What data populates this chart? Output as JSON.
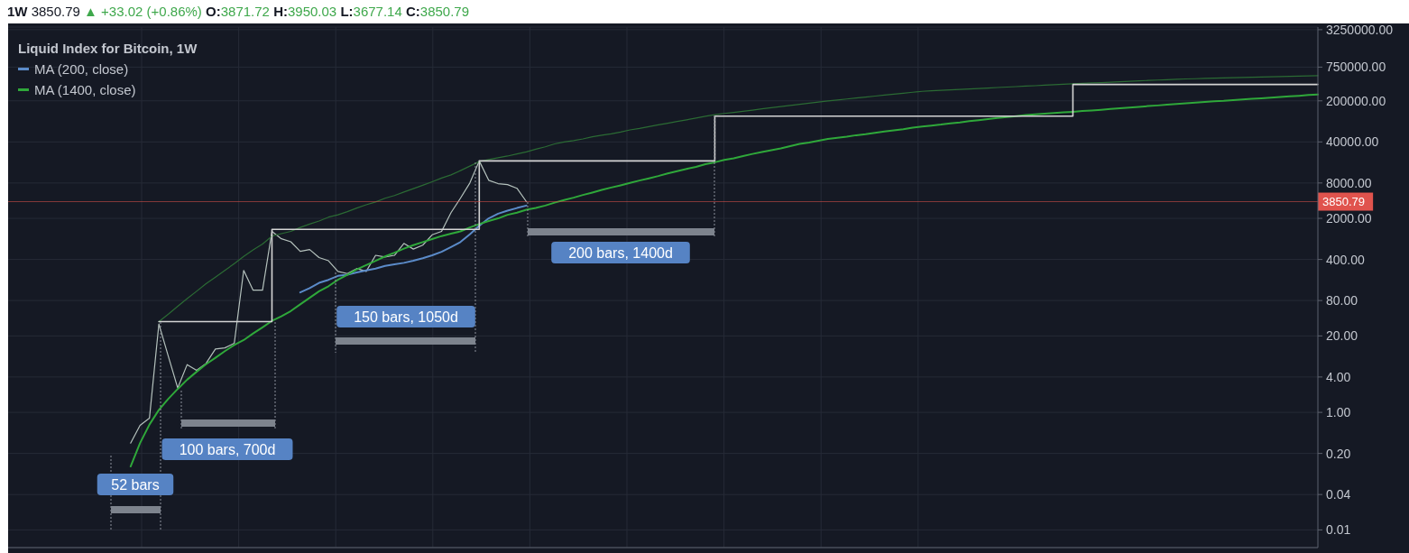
{
  "chart_data": {
    "type": "line",
    "title": "1W 3850.79 ▲ +33.02 (+0.86%) O:3871.72 H:3950.03 L:3677.14 C:3850.79",
    "subtitle": "Liquid Index for Bitcoin, 1W",
    "categories": [
      null,
      null,
      null,
      null,
      null,
      null,
      null,
      null,
      null,
      null,
      null,
      null,
      null,
      null,
      null,
      null,
      null,
      null,
      null,
      null,
      null,
      null,
      null,
      null,
      null,
      null,
      null,
      null,
      null,
      null,
      null,
      null,
      null,
      null,
      null,
      null,
      null,
      null,
      null,
      null,
      null,
      null,
      null,
      null,
      null,
      null,
      null,
      null,
      null,
      null,
      null,
      null,
      null,
      null,
      null,
      null,
      null,
      null,
      null,
      null,
      null,
      null,
      null,
      null,
      null,
      null,
      null,
      null,
      null,
      null,
      null,
      null,
      null,
      null,
      null,
      null,
      null,
      null,
      null,
      null,
      null,
      null,
      null,
      null,
      null,
      null,
      null,
      null,
      null,
      null,
      null,
      null,
      null,
      null,
      null,
      null,
      null,
      null,
      null,
      null,
      null,
      null,
      null,
      null,
      null,
      null,
      null,
      null,
      null,
      null,
      null,
      null,
      null,
      null,
      null,
      null,
      null,
      null,
      null,
      null,
      null,
      null,
      null,
      null,
      null,
      null,
      null,
      null,
      null,
      null,
      null,
      null,
      null,
      null,
      null,
      null,
      null,
      null,
      null,
      null
    ],
    "ylim": [
      0.005,
      3600000
    ],
    "yticks": [
      {
        "value": 0.01,
        "label": "0.01"
      },
      {
        "value": 0.04,
        "label": "0.04"
      },
      {
        "value": 0.2,
        "label": "0.20"
      },
      {
        "value": 1,
        "label": "1.00"
      },
      {
        "value": 4,
        "label": "4.00"
      },
      {
        "value": 20,
        "label": "20.00"
      },
      {
        "value": 80,
        "label": "80.00"
      },
      {
        "value": 400,
        "label": "400.00"
      },
      {
        "value": 2000,
        "label": "2000.00"
      },
      {
        "value": 8000,
        "label": "8000.00"
      },
      {
        "value": 40000,
        "label": "40000.00"
      },
      {
        "value": 200000,
        "label": "200000.00"
      },
      {
        "value": 750000,
        "label": "750000.00"
      },
      {
        "value": 3250000,
        "label": "3250000.00"
      }
    ],
    "log": "y",
    "grid": true,
    "legend": "top left",
    "series": [
      {
        "color": "#b5c2bd",
        "values": [
          null,
          null,
          null,
          null,
          null,
          null,
          null,
          null,
          null,
          null,
          null,
          null,
          null,
          0.3,
          0.6,
          0.8,
          32,
          9,
          2.6,
          6.5,
          5.2,
          6.8,
          12,
          12.5,
          15,
          260,
          120,
          120,
          1200,
          900,
          800,
          550,
          590,
          430,
          380,
          250,
          230,
          280,
          250,
          470,
          440,
          470,
          750,
          600,
          700,
          1050,
          1200,
          2500,
          4400,
          8000,
          19000,
          8900,
          7800,
          7500,
          6500,
          3850.79,
          null,
          null,
          null,
          null,
          null,
          null,
          null,
          null,
          null,
          null,
          null,
          null,
          null,
          null,
          null,
          null,
          null,
          null,
          null,
          null,
          null,
          null,
          null,
          null,
          null,
          null,
          null,
          null,
          null,
          null,
          null,
          null,
          null,
          null,
          null,
          null,
          null,
          null,
          null,
          null,
          null,
          null,
          null,
          null,
          null,
          null,
          null,
          null,
          null,
          null,
          null,
          null,
          null,
          null,
          null,
          null,
          null,
          null,
          null,
          null,
          null,
          null,
          null,
          null,
          null,
          null,
          null,
          null,
          null,
          null,
          null,
          null,
          null,
          null,
          null,
          null,
          null,
          null,
          null,
          null,
          null,
          null,
          null,
          null
        ]
      },
      {
        "name": "MA (200, close)",
        "color": "#5b8bc9",
        "values": [
          null,
          null,
          null,
          null,
          null,
          null,
          null,
          null,
          null,
          null,
          null,
          null,
          null,
          null,
          null,
          null,
          null,
          null,
          null,
          null,
          null,
          null,
          null,
          null,
          null,
          null,
          null,
          null,
          null,
          null,
          null,
          110,
          130,
          160,
          180,
          210,
          220,
          240,
          260,
          280,
          310,
          330,
          350,
          380,
          420,
          470,
          540,
          650,
          790,
          1070,
          1500,
          2000,
          2400,
          2700,
          3000,
          3300,
          null,
          null,
          null,
          null,
          null,
          null,
          null,
          null,
          null,
          null,
          null,
          null,
          null,
          null,
          null,
          null,
          null,
          null,
          null,
          null,
          null,
          null,
          null,
          null,
          null,
          null,
          null,
          null,
          null,
          null,
          null,
          null,
          null,
          null,
          null,
          null,
          null,
          null,
          null,
          null,
          null,
          null,
          null,
          null,
          null,
          null,
          null,
          null,
          null,
          null,
          null,
          null,
          null,
          null,
          null,
          null,
          null,
          null,
          null,
          null,
          null,
          null,
          null,
          null,
          null,
          null,
          null,
          null,
          null,
          null,
          null,
          null,
          null,
          null,
          null,
          null,
          null,
          null,
          null,
          null,
          null,
          null,
          null,
          null
        ]
      },
      {
        "name": "MA (1400, close)",
        "color": "#2fa83a",
        "values": [
          null,
          null,
          null,
          null,
          null,
          null,
          null,
          null,
          null,
          null,
          null,
          null,
          null,
          0.12,
          0.3,
          0.62,
          1.1,
          1.7,
          2.5,
          3.6,
          4.9,
          6.6,
          8.5,
          11,
          14,
          17,
          22,
          28,
          36,
          43,
          53,
          69,
          89,
          115,
          140,
          180,
          220,
          270,
          320,
          380,
          450,
          520,
          610,
          700,
          790,
          890,
          1000,
          1100,
          1200,
          1400,
          1600,
          1800,
          2000,
          2300,
          2500,
          2800,
          3000,
          3300,
          3700,
          4100,
          4500,
          5000,
          5500,
          6100,
          6700,
          7300,
          8000,
          8800,
          9600,
          10500,
          11600,
          12700,
          13900,
          15000,
          16700,
          18000,
          19700,
          21000,
          23000,
          25000,
          27000,
          29000,
          31000,
          34000,
          37000,
          39000,
          42000,
          45000,
          47000,
          49000,
          52000,
          54000,
          57000,
          60000,
          63000,
          66000,
          70000,
          73000,
          76000,
          79000,
          83000,
          86000,
          90000,
          94000,
          98000,
          102000,
          106000,
          110000,
          115000,
          118000,
          121000,
          124000,
          127000,
          130000,
          134000,
          137000,
          141000,
          145000,
          150000,
          154000,
          158000,
          163000,
          167000,
          172000,
          177000,
          182000,
          186000,
          191000,
          196000,
          200000,
          206000,
          211000,
          216000,
          221000,
          227000,
          233000,
          238000,
          244000,
          251000,
          257000
        ]
      },
      {
        "color": "#2b6b34",
        "values": [
          null,
          null,
          null,
          null,
          null,
          null,
          null,
          null,
          null,
          null,
          null,
          null,
          null,
          null,
          null,
          null,
          35,
          47,
          64,
          86,
          115,
          155,
          200,
          260,
          340,
          450,
          580,
          730,
          1000,
          1100,
          1200,
          1400,
          1600,
          1800,
          2100,
          2300,
          2600,
          3000,
          3400,
          3800,
          4400,
          4900,
          5600,
          6400,
          7300,
          8400,
          9700,
          11000,
          13000,
          15500,
          18500,
          20000,
          21500,
          23000,
          25000,
          27000,
          30000,
          33000,
          37000,
          40000,
          42000,
          45000,
          49000,
          52000,
          55000,
          59000,
          64000,
          68000,
          73000,
          78000,
          83000,
          89000,
          95000,
          102000,
          109000,
          116000,
          122000,
          127000,
          133000,
          139000,
          146000,
          153000,
          160000,
          167000,
          175000,
          183000,
          191000,
          199000,
          207000,
          215000,
          223000,
          232000,
          241000,
          250000,
          260000,
          270000,
          280000,
          290000,
          296000,
          301000,
          307000,
          313000,
          318000,
          324000,
          330000,
          337000,
          343000,
          349000,
          356000,
          362000,
          369000,
          376000,
          383000,
          390000,
          396000,
          403000,
          409000,
          416000,
          423000,
          430000,
          437000,
          444000,
          451000,
          458000,
          466000,
          472000,
          476000,
          481000,
          485000,
          490000,
          494000,
          499000,
          503000,
          508000,
          513000,
          517000,
          522000,
          527000,
          532000,
          537000
        ]
      },
      {
        "type": "step",
        "color": "#d4d4d4",
        "values": [
          null,
          null,
          null,
          null,
          null,
          null,
          null,
          null,
          null,
          null,
          null,
          null,
          null,
          null,
          null,
          null,
          35,
          35,
          35,
          35,
          35,
          35,
          35,
          35,
          35,
          35,
          35,
          35,
          1300,
          1300,
          1300,
          1300,
          1300,
          1300,
          1300,
          1300,
          1300,
          1300,
          1300,
          1300,
          1300,
          1300,
          1300,
          1300,
          1300,
          1300,
          1300,
          1300,
          1300,
          1300,
          19000,
          19000,
          19000,
          19000,
          19000,
          19000,
          19000,
          19000,
          19000,
          19000,
          19000,
          19000,
          19000,
          19000,
          19000,
          19000,
          19000,
          19000,
          19000,
          19000,
          19000,
          19000,
          19000,
          19000,
          19000,
          110000,
          110000,
          110000,
          110000,
          110000,
          110000,
          110000,
          110000,
          110000,
          110000,
          110000,
          110000,
          110000,
          110000,
          110000,
          110000,
          110000,
          110000,
          110000,
          110000,
          110000,
          110000,
          110000,
          110000,
          110000,
          110000,
          110000,
          110000,
          110000,
          110000,
          110000,
          110000,
          110000,
          110000,
          110000,
          110000,
          110000,
          110000,
          380000,
          380000,
          380000,
          380000,
          380000,
          380000,
          380000,
          380000,
          380000,
          380000,
          380000,
          380000,
          380000,
          380000,
          380000,
          380000,
          380000,
          380000,
          380000,
          380000,
          380000,
          380000,
          380000,
          380000,
          380000,
          380000,
          380000
        ]
      }
    ],
    "ref_lines": [
      {
        "axis": "y",
        "value": 3850.79,
        "label": "3850.79",
        "color": "#e0534d"
      }
    ],
    "annotations": [
      "52 bars",
      "100 bars, 700d",
      "150 bars, 1050d",
      "200 bars, 1400d"
    ]
  }
}
